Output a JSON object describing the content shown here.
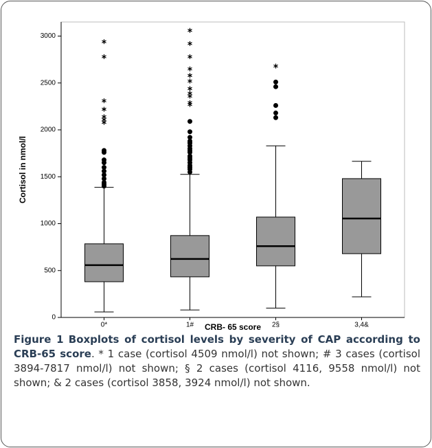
{
  "chart_data": {
    "type": "boxplot",
    "y_label": "Cortisol in nmol/l",
    "x_label": "CRB- 65 score",
    "categories": [
      "0*",
      "1#",
      "2§",
      "3,4&"
    ],
    "color": "#999999",
    "ylim": [
      0,
      3150
    ],
    "yticks": [
      0,
      500,
      1000,
      1500,
      2000,
      2500,
      3000
    ],
    "boxes": [
      {
        "min": 59,
        "q1": 381,
        "median": 558,
        "q3": 785,
        "max": 1387,
        "outliers": [
          1400,
          1420,
          1440,
          1480,
          1520,
          1560,
          1600,
          1650,
          1680,
          1760,
          1780
        ],
        "extremes": [
          2080,
          2110,
          2140,
          2220,
          2310,
          2780,
          2940
        ]
      },
      {
        "min": 80,
        "q1": 433,
        "median": 624,
        "q3": 873,
        "max": 1526,
        "outliers": [
          1550,
          1580,
          1600,
          1620,
          1650,
          1680,
          1700,
          1720,
          1760,
          1780,
          1800,
          1830,
          1860,
          1880,
          1920,
          1980,
          2090
        ],
        "extremes": [
          2270,
          2290,
          2360,
          2390,
          2440,
          2520,
          2580,
          2650,
          2780,
          2920,
          3060
        ]
      },
      {
        "min": 100,
        "q1": 550,
        "median": 760,
        "q3": 1070,
        "max": 1830,
        "outliers": [
          2130,
          2180,
          2260,
          2460,
          2510
        ],
        "extremes": [
          2680
        ]
      },
      {
        "min": 220,
        "q1": 680,
        "median": 1055,
        "q3": 1480,
        "max": 1665,
        "outliers": [],
        "extremes": []
      }
    ]
  },
  "caption": {
    "label": "Figure 1",
    "title": "Boxplots of cortisol levels by severity of CAP according to CRB-65 score",
    "text": ". * 1 case (cortisol 4509 nmol/l) not shown; # 3 cases (cortisol 3894-7817 nmol/l) not shown; § 2 cases (cortisol 4116, 9558 nmol/l) not shown; & 2 cases (cortisol 3858, 3924 nmol/l) not shown."
  }
}
